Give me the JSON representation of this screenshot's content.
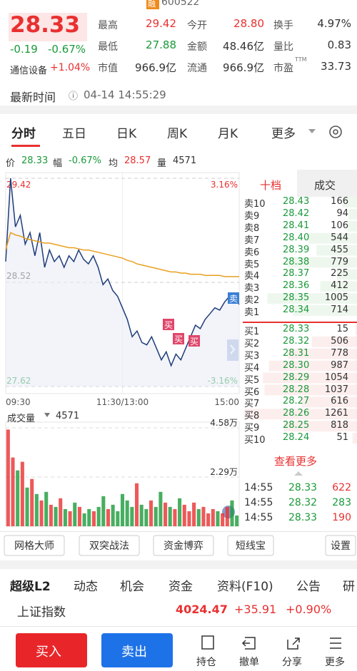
{
  "header": {
    "badge": "融",
    "code": "600522"
  },
  "quote": {
    "price": "28.33",
    "change": "-0.19",
    "change_pct": "-0.67%",
    "sector": "通信设备",
    "sector_pct": "+1.04%",
    "stats": [
      [
        {
          "label": "最高",
          "value": "29.42",
          "color": "#e93030"
        },
        {
          "label": "今开",
          "value": "28.80",
          "color": "#e93030"
        },
        {
          "label": "换手",
          "value": "4.97%",
          "color": "#333"
        }
      ],
      [
        {
          "label": "最低",
          "value": "27.88",
          "color": "#1a9a3a"
        },
        {
          "label": "金额",
          "value": "48.46亿",
          "color": "#333"
        },
        {
          "label": "量比",
          "value": "0.83",
          "color": "#333"
        }
      ],
      [
        {
          "label": "市值",
          "value": "966.9亿",
          "color": "#333"
        },
        {
          "label": "流通",
          "value": "966.9亿",
          "color": "#333"
        },
        {
          "label": "市盈",
          "value": "33.73",
          "color": "#333",
          "sup": "TTM"
        }
      ]
    ]
  },
  "time": {
    "label": "最新时间",
    "value": "04-14 14:55:29"
  },
  "tabs": [
    "分时",
    "五日",
    "日K",
    "周K",
    "月K",
    "更多"
  ],
  "chart_data": [
    {
      "type": "line",
      "info": {
        "price": "28.33",
        "change_label": "幅",
        "change": "-0.67%",
        "avg": "28.57",
        "vol_label": "量",
        "vol": "4571"
      },
      "categories": [
        "09:30",
        null,
        null,
        null,
        null,
        null,
        null,
        null,
        null,
        null,
        null,
        null,
        null,
        null,
        null,
        null,
        null,
        null,
        null,
        null,
        null,
        null,
        null,
        null,
        "11:30/13:00",
        null,
        null,
        null,
        null,
        null,
        null,
        null,
        null,
        null,
        null,
        null,
        null,
        null,
        null,
        null,
        null,
        null,
        null,
        null,
        null,
        null,
        null,
        null,
        "15:00"
      ],
      "series": [
        {
          "name": "价",
          "color": "#1f3d7a",
          "values": [
            28.7,
            29.42,
            29.0,
            29.1,
            28.85,
            28.95,
            28.75,
            28.95,
            28.65,
            28.8,
            28.7,
            28.75,
            28.65,
            28.75,
            28.7,
            28.8,
            28.72,
            28.68,
            28.75,
            28.65,
            28.5,
            28.55,
            28.45,
            28.4,
            28.3,
            28.2,
            28.05,
            28.1,
            28.0,
            27.98,
            28.05,
            27.95,
            27.85,
            27.92,
            27.8,
            27.9,
            27.85,
            27.95,
            28.05,
            28.15,
            28.12,
            28.2,
            28.25,
            28.3,
            28.28,
            28.35,
            28.4,
            28.38,
            28.33
          ]
        },
        {
          "name": "均",
          "color": "#e8a020",
          "values": [
            28.8,
            28.95,
            28.93,
            28.92,
            28.9,
            28.89,
            28.88,
            28.87,
            28.86,
            28.86,
            28.85,
            28.84,
            28.83,
            28.82,
            28.82,
            28.81,
            28.8,
            28.8,
            28.79,
            28.78,
            28.77,
            28.76,
            28.75,
            28.74,
            28.73,
            28.71,
            28.7,
            28.68,
            28.67,
            28.66,
            28.65,
            28.64,
            28.63,
            28.62,
            28.61,
            28.61,
            28.6,
            28.6,
            28.59,
            28.59,
            28.59,
            28.58,
            28.58,
            28.58,
            28.58,
            28.57,
            28.57,
            28.57,
            28.57
          ]
        }
      ],
      "ylim": [
        27.62,
        29.42
      ],
      "yticks": [
        29.42,
        28.52,
        27.62
      ],
      "y2lim": [
        -3.16,
        3.16
      ],
      "y2ticks": [
        {
          "value": 3.16,
          "label": "3.16%"
        },
        {
          "value": -3.16,
          "label": "-3.16%"
        }
      ],
      "annotations": [
        "卖",
        "买",
        "买",
        "买"
      ],
      "grid": true
    },
    {
      "type": "bar",
      "title": "成交量",
      "total": "4571",
      "up_color": "#e93030",
      "down_color": "#1a9a3a",
      "values": [
        4.5,
        3.2,
        2.6,
        3.0,
        1.8,
        2.2,
        1.5,
        1.2,
        1.6,
        1.0,
        0.9,
        1.3,
        0.8,
        0.7,
        1.1,
        0.9,
        0.6,
        0.8,
        0.7,
        0.9,
        1.4,
        0.8,
        1.0,
        0.7,
        1.5,
        1.2,
        0.9,
        2.0,
        1.0,
        0.8,
        1.2,
        0.9,
        1.6,
        1.1,
        0.9,
        0.8,
        1.3,
        1.0,
        0.7,
        1.1,
        0.8,
        0.9,
        0.6,
        0.8,
        0.7,
        0.6,
        0.9,
        1.2,
        0.5
      ],
      "ylim": [
        0,
        4.58
      ],
      "yticks": [
        {
          "value": 4.58,
          "label": "4.58万"
        },
        {
          "value": 2.29,
          "label": "2.29万"
        }
      ]
    }
  ],
  "order_book": {
    "tabs": [
      "十档",
      "成交"
    ],
    "asks": [
      [
        "卖10",
        "28.43",
        "166"
      ],
      [
        "卖9",
        "28.42",
        "94"
      ],
      [
        "卖8",
        "28.41",
        "106"
      ],
      [
        "卖7",
        "28.40",
        "544"
      ],
      [
        "卖6",
        "28.39",
        "455"
      ],
      [
        "卖5",
        "28.38",
        "779"
      ],
      [
        "卖4",
        "28.37",
        "225"
      ],
      [
        "卖3",
        "28.36",
        "412"
      ],
      [
        "卖2",
        "28.35",
        "1005"
      ],
      [
        "卖1",
        "28.34",
        "714"
      ]
    ],
    "bids": [
      [
        "买1",
        "28.33",
        "15"
      ],
      [
        "买2",
        "28.32",
        "506"
      ],
      [
        "买3",
        "28.31",
        "778"
      ],
      [
        "买4",
        "28.30",
        "987"
      ],
      [
        "买5",
        "28.29",
        "1054"
      ],
      [
        "买6",
        "28.28",
        "1037"
      ],
      [
        "买7",
        "28.27",
        "616"
      ],
      [
        "买8",
        "28.26",
        "1261"
      ],
      [
        "买9",
        "28.25",
        "818"
      ],
      [
        "买10",
        "28.24",
        "51"
      ]
    ],
    "more": "查看更多"
  },
  "trades": [
    {
      "time": "14:55",
      "price": "28.33",
      "vol": "622",
      "color": "#e93030"
    },
    {
      "time": "14:55",
      "price": "28.32",
      "vol": "283",
      "color": "#1a9a3a"
    },
    {
      "time": "14:55",
      "price": "28.33",
      "vol": "190",
      "color": "#e93030"
    }
  ],
  "tools": [
    "网格大师",
    "双突战法",
    "资金博弈",
    "短线宝",
    "设置"
  ],
  "lower_tabs": [
    "超级L2",
    "动态",
    "机会",
    "资金",
    "资料(F10)",
    "公告",
    "研"
  ],
  "index": {
    "name": "上证指数",
    "value": "4024.47",
    "change": "+35.91",
    "pct": "+0.90%"
  },
  "bottom_bar": {
    "buy": "买入",
    "sell": "卖出",
    "items": [
      "持仓",
      "撤单",
      "分享",
      "更多"
    ]
  }
}
